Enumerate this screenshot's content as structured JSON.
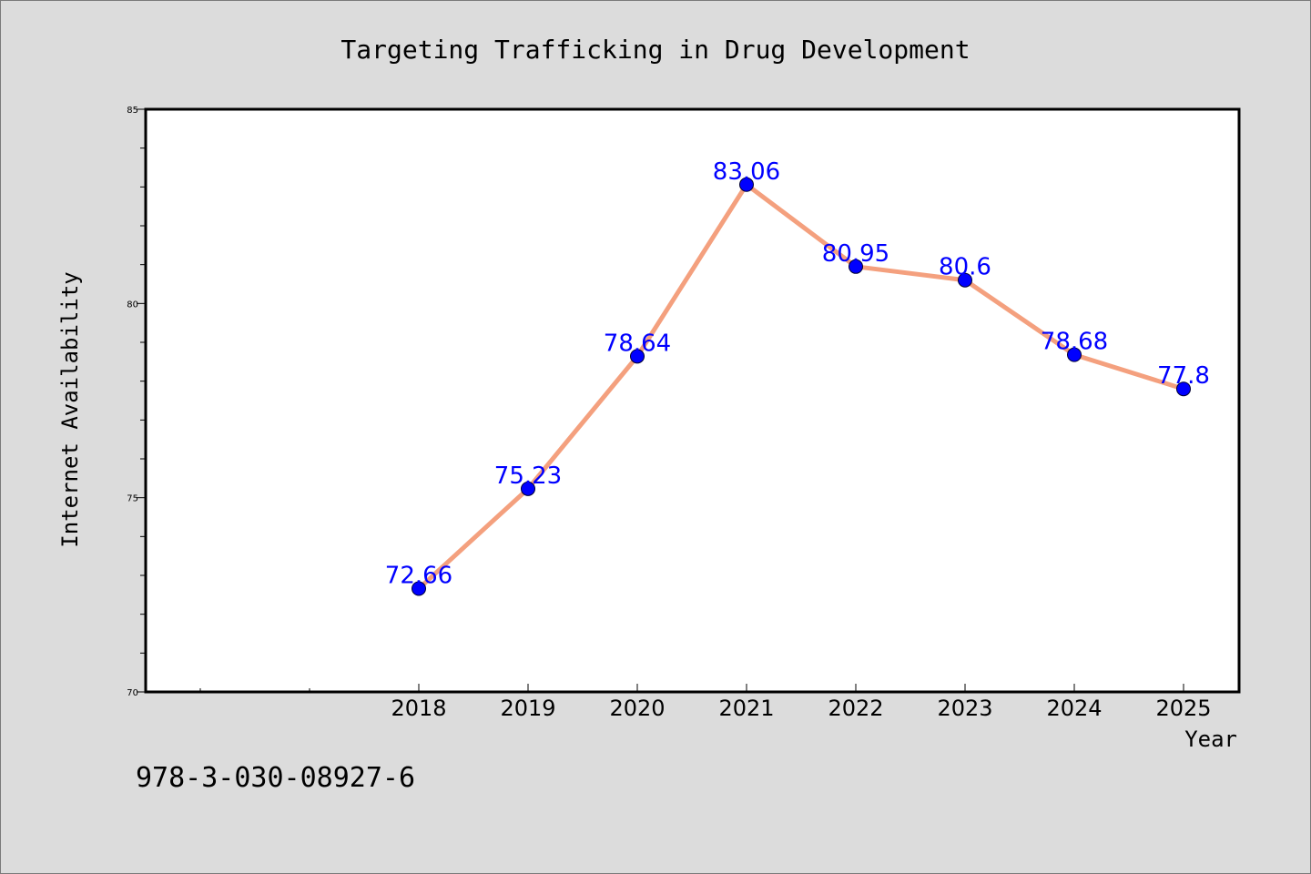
{
  "footer_text": "978-3-030-08927-6",
  "colors": {
    "background": "#dcdcdc",
    "plot_background": "#ffffff",
    "line": "#f4a07e",
    "marker": "#0000ff",
    "data_label": "#0000ff"
  },
  "chart_data": {
    "type": "line",
    "title": "Targeting Trafficking in Drug Development",
    "xlabel": "Year",
    "ylabel": "Internet Availability",
    "x": [
      "2018",
      "2019",
      "2020",
      "2021",
      "2022",
      "2023",
      "2024",
      "2025"
    ],
    "series": [
      {
        "values": [
          72.66,
          75.23,
          78.64,
          83.06,
          80.95,
          80.6,
          78.68,
          77.8
        ]
      }
    ],
    "data_labels": [
      "72.66",
      "75.23",
      "78.64",
      "83.06",
      "80.95",
      "80.6",
      "78.68",
      "77.8"
    ],
    "ylim": [
      70,
      85
    ],
    "yticks": [
      "70",
      "75",
      "80",
      "85"
    ],
    "marker": "circle",
    "grid": false,
    "legend": "none"
  }
}
